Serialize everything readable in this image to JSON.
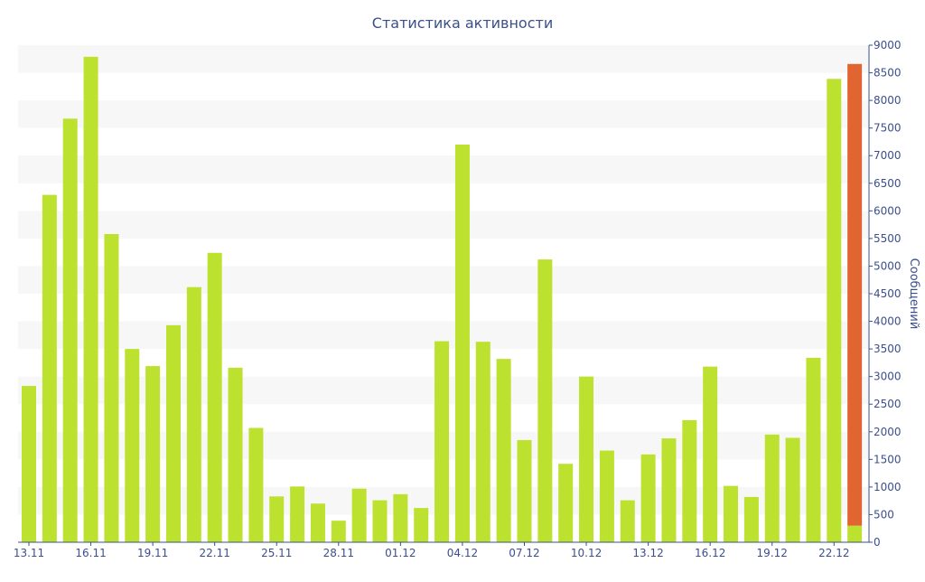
{
  "chart_data": {
    "type": "bar",
    "title": "Статистика активности",
    "ylabel": "Сообщений",
    "xlabel": "",
    "ylim": [
      0,
      9000
    ],
    "y_ticks": [
      0,
      500,
      1000,
      1500,
      2000,
      2500,
      3000,
      3500,
      4000,
      4500,
      5000,
      5500,
      6000,
      6500,
      7000,
      7500,
      8000,
      8500,
      9000
    ],
    "y_axis_side": "right",
    "grid": "alternating horizontal bands",
    "categories": [
      "13.11",
      "14.11",
      "15.11",
      "16.11",
      "17.11",
      "18.11",
      "19.11",
      "20.11",
      "21.11",
      "22.11",
      "23.11",
      "24.11",
      "25.11",
      "26.11",
      "27.11",
      "28.11",
      "29.11",
      "30.11",
      "01.12",
      "02.12",
      "03.12",
      "04.12",
      "05.12",
      "06.12",
      "07.12",
      "08.12",
      "09.12",
      "10.12",
      "11.12",
      "12.12",
      "13.12",
      "14.12",
      "15.12",
      "16.12",
      "17.12",
      "18.12",
      "19.12",
      "20.12",
      "21.12",
      "22.12",
      "23.12"
    ],
    "x_tick_labels": [
      "13.11",
      "16.11",
      "19.11",
      "22.11",
      "25.11",
      "28.11",
      "01.12",
      "04.12",
      "07.12",
      "10.12",
      "13.12",
      "16.12",
      "19.12",
      "22.12"
    ],
    "series": [
      {
        "color": "#bde12f",
        "values": [
          2830,
          6290,
          7670,
          8790,
          5580,
          3500,
          3190,
          3930,
          4620,
          5240,
          3160,
          2070,
          830,
          1010,
          700,
          390,
          970,
          760,
          870,
          620,
          3640,
          7200,
          3630,
          3320,
          1850,
          5120,
          1420,
          3000,
          1660,
          760,
          1590,
          1880,
          2210,
          3180,
          1020,
          820,
          1950,
          1890,
          3340,
          8390,
          300
        ]
      },
      {
        "color": "#e06530",
        "values": [
          0,
          0,
          0,
          0,
          0,
          0,
          0,
          0,
          0,
          0,
          0,
          0,
          0,
          0,
          0,
          0,
          0,
          0,
          0,
          0,
          0,
          0,
          0,
          0,
          0,
          0,
          0,
          0,
          0,
          0,
          0,
          0,
          0,
          0,
          0,
          0,
          0,
          0,
          0,
          0,
          8360
        ]
      }
    ],
    "colors": {
      "text": "#3b4f8c",
      "band": "#f7f7f7",
      "axis": "#3b4f8c"
    }
  }
}
